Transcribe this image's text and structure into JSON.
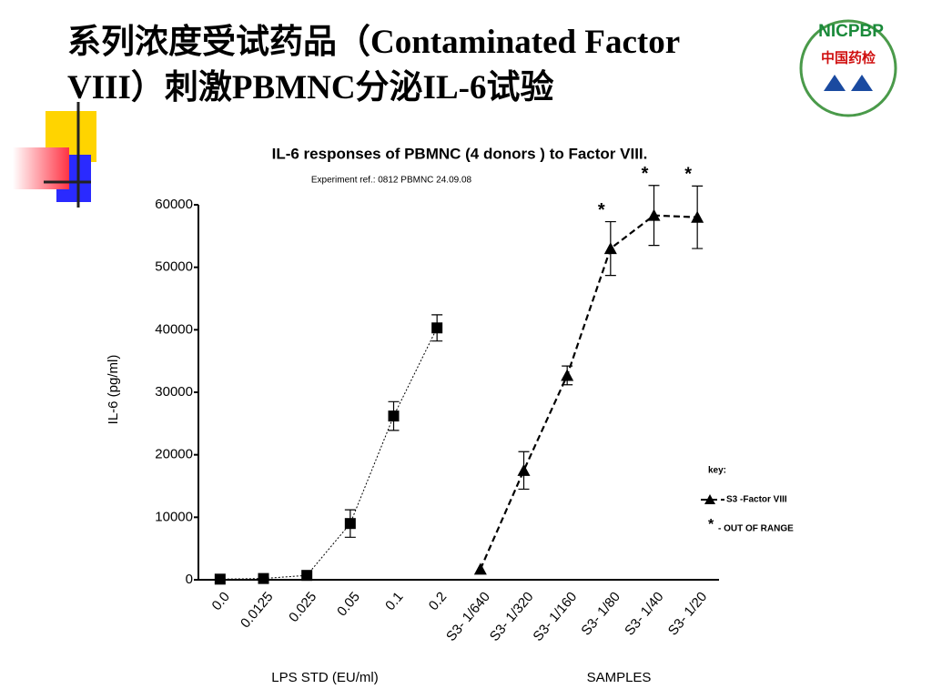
{
  "slide_title_lines": [
    "系列浓度受试药品（Contaminated Factor",
    "VIII）刺激PBMNC分泌IL-6试验"
  ],
  "logo": {
    "arc_text": "NICPBP",
    "label": "中国药检"
  },
  "chart_data": {
    "type": "line",
    "title": "IL-6 responses of PBMNC (4 donors ) to Factor VIII.",
    "subtitle": "Experiment ref.: 0812 PBMNC 24.09.08",
    "y_label": "IL-6  (pg/ml)",
    "x_group_labels": [
      "LPS STD (EU/ml)",
      "SAMPLES"
    ],
    "categories": [
      "0.0",
      "0.0125",
      "0.025",
      "0.05",
      "0.1",
      "0.2",
      "S3- 1/640",
      "S3- 1/320",
      "S3- 1/160",
      "S3- 1/80",
      "S3- 1/40",
      "S3- 1/20"
    ],
    "ylim": [
      0,
      60000
    ],
    "yticks": [
      0,
      10000,
      20000,
      30000,
      40000,
      50000,
      60000
    ],
    "grid": false,
    "series": [
      {
        "color": "#000000",
        "line_style": "dotted",
        "marker": "square",
        "values": [
          100,
          200,
          700,
          9000,
          26200,
          40300,
          null,
          null,
          null,
          null,
          null,
          null
        ],
        "errors": [
          null,
          null,
          null,
          2200,
          2300,
          2100,
          null,
          null,
          null,
          null,
          null,
          null
        ]
      },
      {
        "name": "S3 -Factor VIII",
        "color": "#000000",
        "line_style": "dashed",
        "marker": "triangle",
        "values": [
          null,
          null,
          null,
          null,
          null,
          null,
          1700,
          17500,
          32700,
          53000,
          58300,
          58000
        ],
        "errors": [
          null,
          null,
          null,
          null,
          null,
          null,
          null,
          3000,
          1500,
          4300,
          4800,
          5000
        ]
      }
    ],
    "legend_title": "key:",
    "legend_position": "right",
    "annotations": [
      {
        "category": "S3- 1/80",
        "text": "*"
      },
      {
        "category": "S3- 1/40",
        "text": "*"
      },
      {
        "category": "S3- 1/20",
        "text": "*"
      }
    ],
    "note": {
      "symbol": "*",
      "text": "- OUT OF RANGE"
    }
  }
}
